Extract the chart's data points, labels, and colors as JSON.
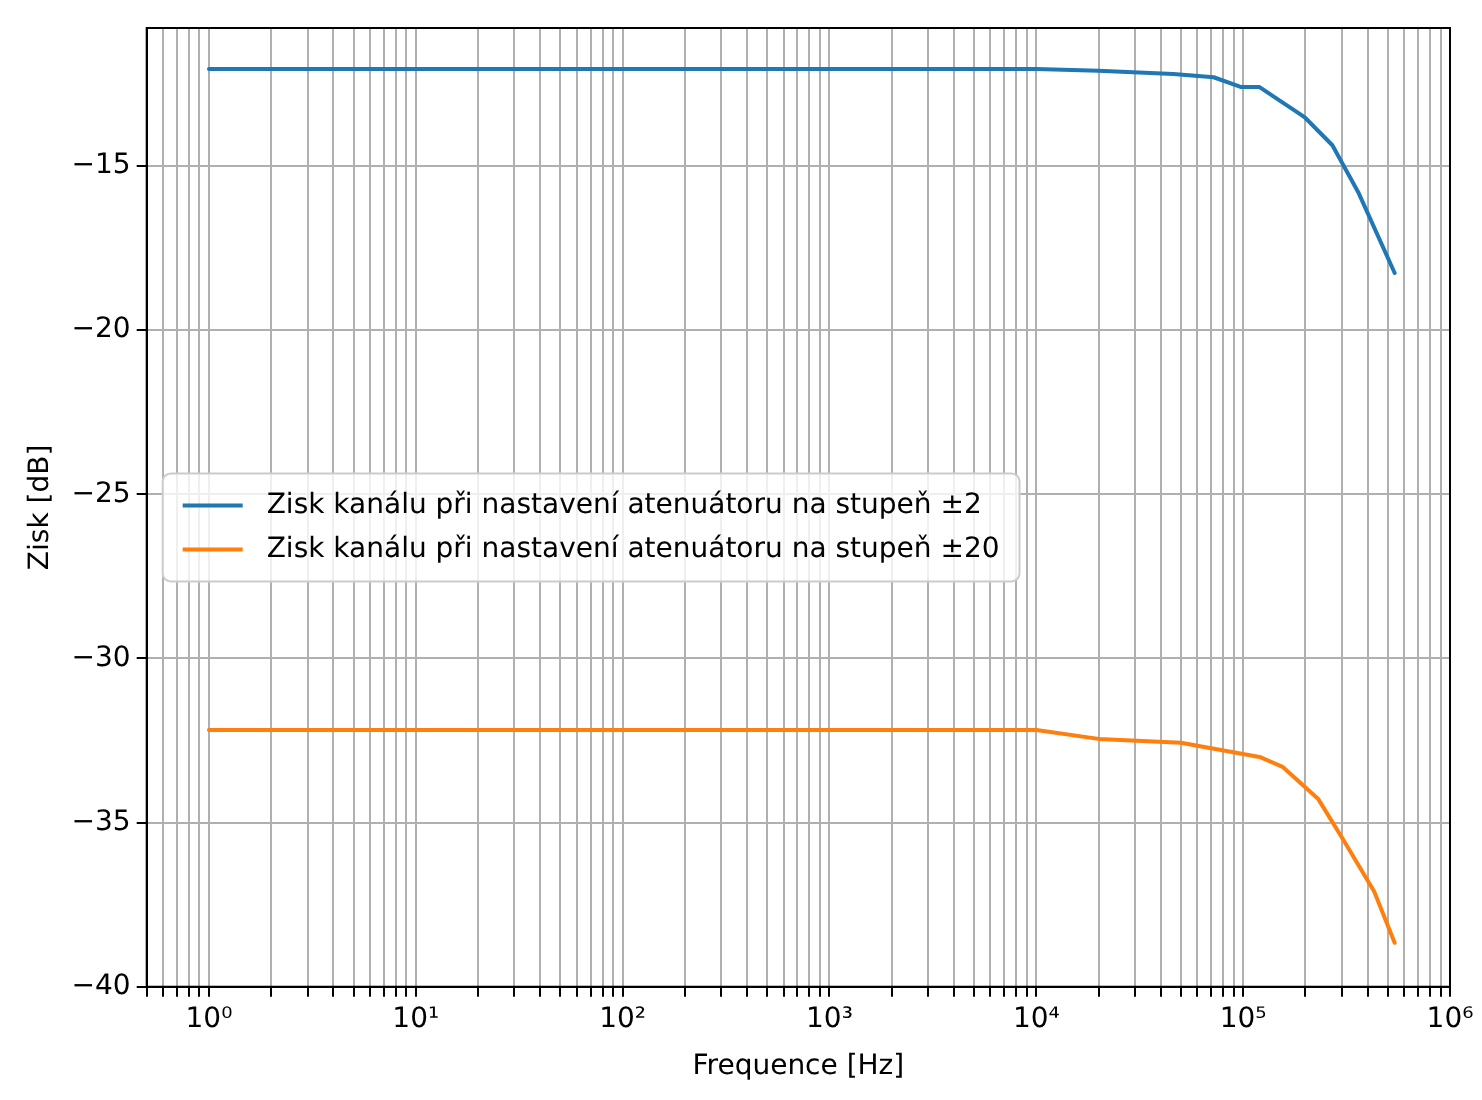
{
  "chart_data": {
    "type": "line",
    "xlabel": "Frequence [Hz]",
    "ylabel": "Zisk [dB]",
    "log": "x",
    "grid": true,
    "legend": "left",
    "marker": "none",
    "line_style": "solid",
    "xlim": [
      0.5,
      1000000
    ],
    "ylim": [
      -40,
      -10.8
    ],
    "xticks": [
      {
        "value": 0.5,
        "label": null
      },
      {
        "value": 0.6,
        "label": null
      },
      {
        "value": 0.7,
        "label": null
      },
      {
        "value": 0.8,
        "label": null
      },
      {
        "value": 0.9,
        "label": null
      },
      {
        "value": 1,
        "label": "10⁰"
      },
      {
        "value": 2,
        "label": null
      },
      {
        "value": 3,
        "label": null
      },
      {
        "value": 4,
        "label": null
      },
      {
        "value": 5,
        "label": null
      },
      {
        "value": 6,
        "label": null
      },
      {
        "value": 7,
        "label": null
      },
      {
        "value": 8,
        "label": null
      },
      {
        "value": 9,
        "label": null
      },
      {
        "value": 10,
        "label": "10¹"
      },
      {
        "value": 20,
        "label": null
      },
      {
        "value": 30,
        "label": null
      },
      {
        "value": 40,
        "label": null
      },
      {
        "value": 50,
        "label": null
      },
      {
        "value": 60,
        "label": null
      },
      {
        "value": 70,
        "label": null
      },
      {
        "value": 80,
        "label": null
      },
      {
        "value": 90,
        "label": null
      },
      {
        "value": 100,
        "label": "10²"
      },
      {
        "value": 200,
        "label": null
      },
      {
        "value": 300,
        "label": null
      },
      {
        "value": 400,
        "label": null
      },
      {
        "value": 500,
        "label": null
      },
      {
        "value": 600,
        "label": null
      },
      {
        "value": 700,
        "label": null
      },
      {
        "value": 800,
        "label": null
      },
      {
        "value": 900,
        "label": null
      },
      {
        "value": 1000,
        "label": "10³"
      },
      {
        "value": 2000,
        "label": null
      },
      {
        "value": 3000,
        "label": null
      },
      {
        "value": 4000,
        "label": null
      },
      {
        "value": 5000,
        "label": null
      },
      {
        "value": 6000,
        "label": null
      },
      {
        "value": 7000,
        "label": null
      },
      {
        "value": 8000,
        "label": null
      },
      {
        "value": 9000,
        "label": null
      },
      {
        "value": 10000,
        "label": "10⁴"
      },
      {
        "value": 20000,
        "label": null
      },
      {
        "value": 30000,
        "label": null
      },
      {
        "value": 40000,
        "label": null
      },
      {
        "value": 50000,
        "label": null
      },
      {
        "value": 60000,
        "label": null
      },
      {
        "value": 70000,
        "label": null
      },
      {
        "value": 80000,
        "label": null
      },
      {
        "value": 90000,
        "label": null
      },
      {
        "value": 100000,
        "label": "10⁵"
      },
      {
        "value": 200000,
        "label": null
      },
      {
        "value": 300000,
        "label": null
      },
      {
        "value": 400000,
        "label": null
      },
      {
        "value": 500000,
        "label": null
      },
      {
        "value": 600000,
        "label": null
      },
      {
        "value": 700000,
        "label": null
      },
      {
        "value": 800000,
        "label": null
      },
      {
        "value": 900000,
        "label": null
      },
      {
        "value": 1000000,
        "label": "10⁶"
      }
    ],
    "yticks": [
      -40,
      -35,
      -30,
      -25,
      -20,
      -15
    ],
    "series": [
      {
        "name": "Zisk kanálu při nastavení atenuátoru na stupeň ±2",
        "color": "#1f77b4",
        "x": [
          1,
          10,
          100,
          1000,
          10000,
          20000,
          46000,
          72000,
          98000,
          120000,
          190000,
          200000,
          270000,
          360000,
          540000
        ],
        "values": [
          -12.05,
          -12.05,
          -12.05,
          -12.05,
          -12.05,
          -12.1,
          -12.2,
          -12.3,
          -12.6,
          -12.6,
          -13.44,
          -13.54,
          -14.37,
          -15.8,
          -18.26
        ]
      },
      {
        "name": "Zisk kanálu při nastavení atenuátoru na stupeň ±20",
        "color": "#ff7f0e",
        "x": [
          1,
          10,
          100,
          1000,
          10000,
          20000,
          50000,
          120000,
          155000,
          230000,
          310000,
          430000,
          540000
        ],
        "values": [
          -32.18,
          -32.18,
          -32.18,
          -32.18,
          -32.18,
          -32.45,
          -32.57,
          -33.0,
          -33.3,
          -34.27,
          -35.6,
          -37.1,
          -38.66
        ]
      }
    ]
  }
}
